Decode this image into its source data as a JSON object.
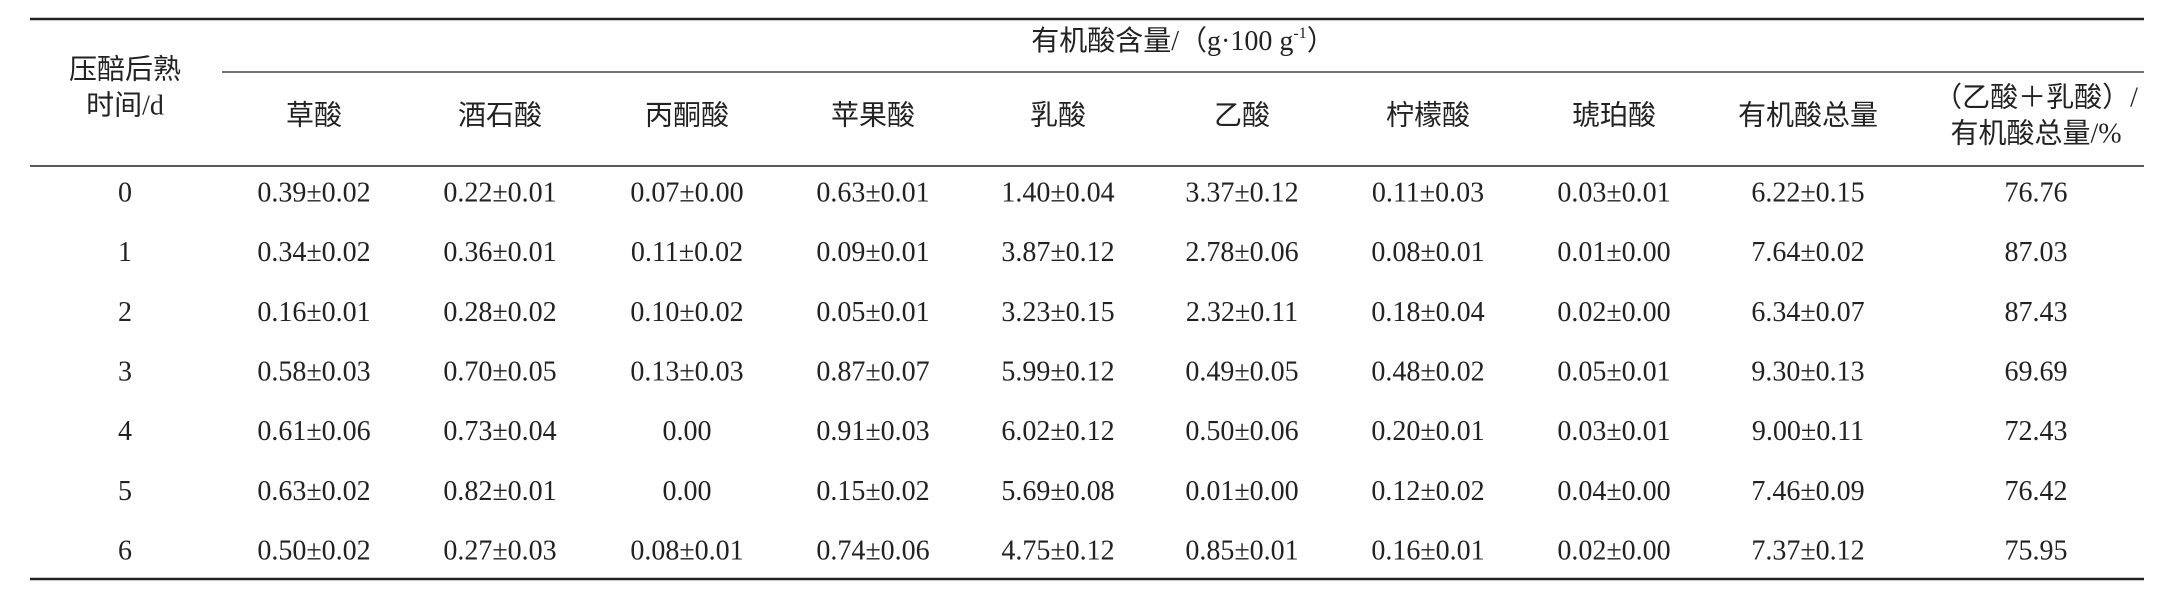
{
  "table": {
    "row_header": [
      "压醅后熟",
      "时间/d"
    ],
    "group_header": {
      "text": "有机酸含量/（g·100 g",
      "superscript": "-1",
      "suffix": "）"
    },
    "columns": [
      "草酸",
      "酒石酸",
      "丙酮酸",
      "苹果酸",
      "乳酸",
      "乙酸",
      "柠檬酸",
      "琥珀酸",
      "有机酸总量"
    ],
    "last_column": [
      "（乙酸＋乳酸）/",
      "有机酸总量/%"
    ],
    "rows": [
      [
        "0",
        "0.39±0.02",
        "0.22±0.01",
        "0.07±0.00",
        "0.63±0.01",
        "1.40±0.04",
        "3.37±0.12",
        "0.11±0.03",
        "0.03±0.01",
        "6.22±0.15",
        "76.76"
      ],
      [
        "1",
        "0.34±0.02",
        "0.36±0.01",
        "0.11±0.02",
        "0.09±0.01",
        "3.87±0.12",
        "2.78±0.06",
        "0.08±0.01",
        "0.01±0.00",
        "7.64±0.02",
        "87.03"
      ],
      [
        "2",
        "0.16±0.01",
        "0.28±0.02",
        "0.10±0.02",
        "0.05±0.01",
        "3.23±0.15",
        "2.32±0.11",
        "0.18±0.04",
        "0.02±0.00",
        "6.34±0.07",
        "87.43"
      ],
      [
        "3",
        "0.58±0.03",
        "0.70±0.05",
        "0.13±0.03",
        "0.87±0.07",
        "5.99±0.12",
        "0.49±0.05",
        "0.48±0.02",
        "0.05±0.01",
        "9.30±0.13",
        "69.69"
      ],
      [
        "4",
        "0.61±0.06",
        "0.73±0.04",
        "0.00",
        "0.91±0.03",
        "6.02±0.12",
        "0.50±0.06",
        "0.20±0.01",
        "0.03±0.01",
        "9.00±0.11",
        "72.43"
      ],
      [
        "5",
        "0.63±0.02",
        "0.82±0.01",
        "0.00",
        "0.15±0.02",
        "5.69±0.08",
        "0.01±0.00",
        "0.12±0.02",
        "0.04±0.00",
        "7.46±0.09",
        "76.42"
      ],
      [
        "6",
        "0.50±0.02",
        "0.27±0.03",
        "0.08±0.01",
        "0.74±0.06",
        "4.75±0.12",
        "0.85±0.01",
        "0.16±0.01",
        "0.02±0.00",
        "7.37±0.12",
        "75.95"
      ]
    ]
  }
}
